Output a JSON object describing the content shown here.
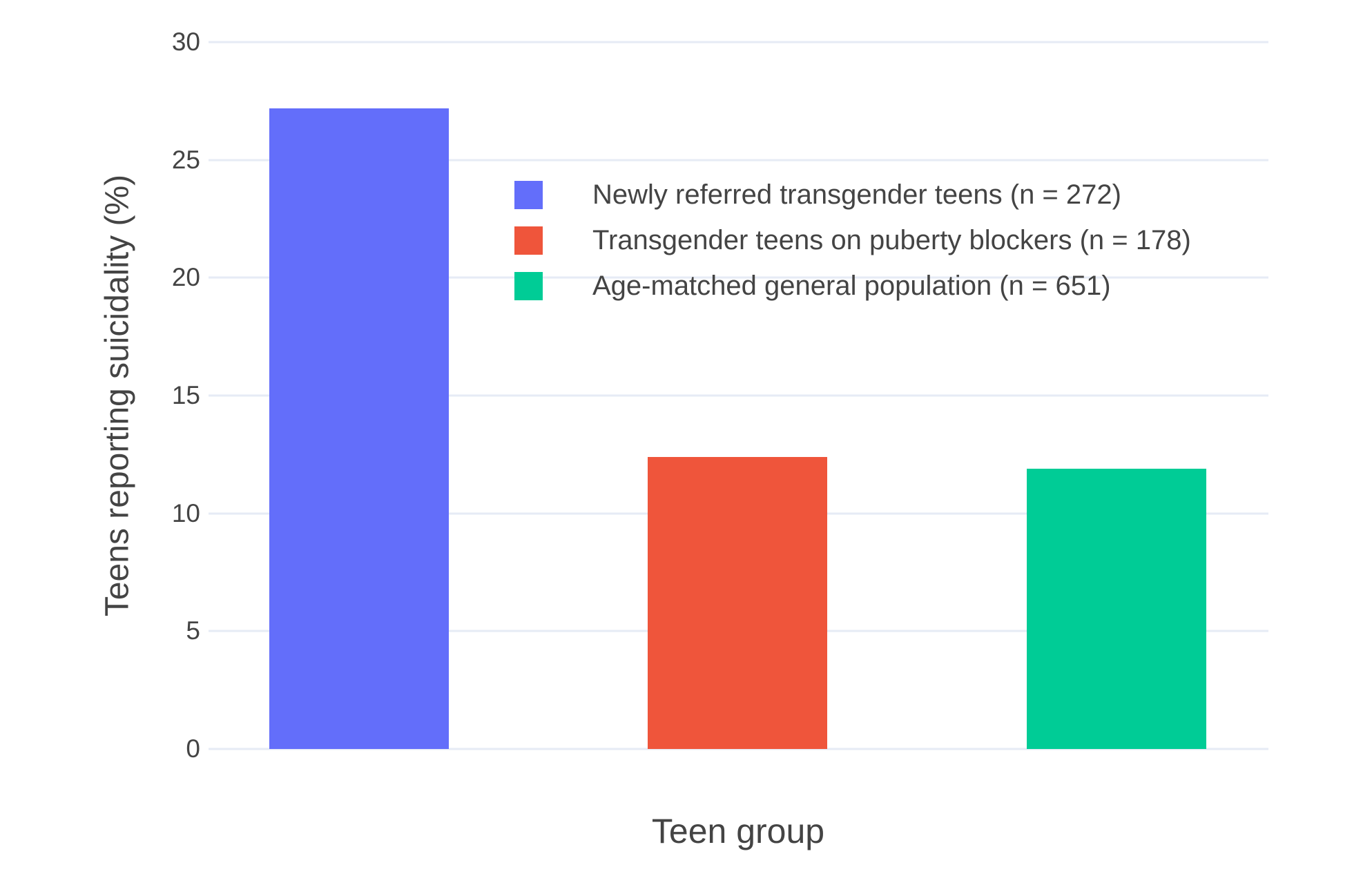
{
  "chart_data": {
    "type": "bar",
    "categories": [
      "Newly referred transgender teens (n = 272)",
      "Transgender teens on puberty blockers (n = 178)",
      "Age-matched general population (n = 651)"
    ],
    "values": [
      27.2,
      12.4,
      11.9
    ],
    "bar_colors": [
      "#636EFA",
      "#EF553B",
      "#00CC96"
    ],
    "title": "",
    "xlabel": "Teen group",
    "ylabel": "Teens reporting suicidality (%)",
    "ylim": [
      0,
      30
    ],
    "yticks": [
      0,
      5,
      10,
      15,
      20,
      25,
      30
    ],
    "x_tick_labels": [],
    "grid": true,
    "legend_position": "inside-upper-center",
    "colors": {
      "gridline": "#E6EBF5",
      "text": "#444444",
      "background": "#FFFFFF"
    }
  }
}
